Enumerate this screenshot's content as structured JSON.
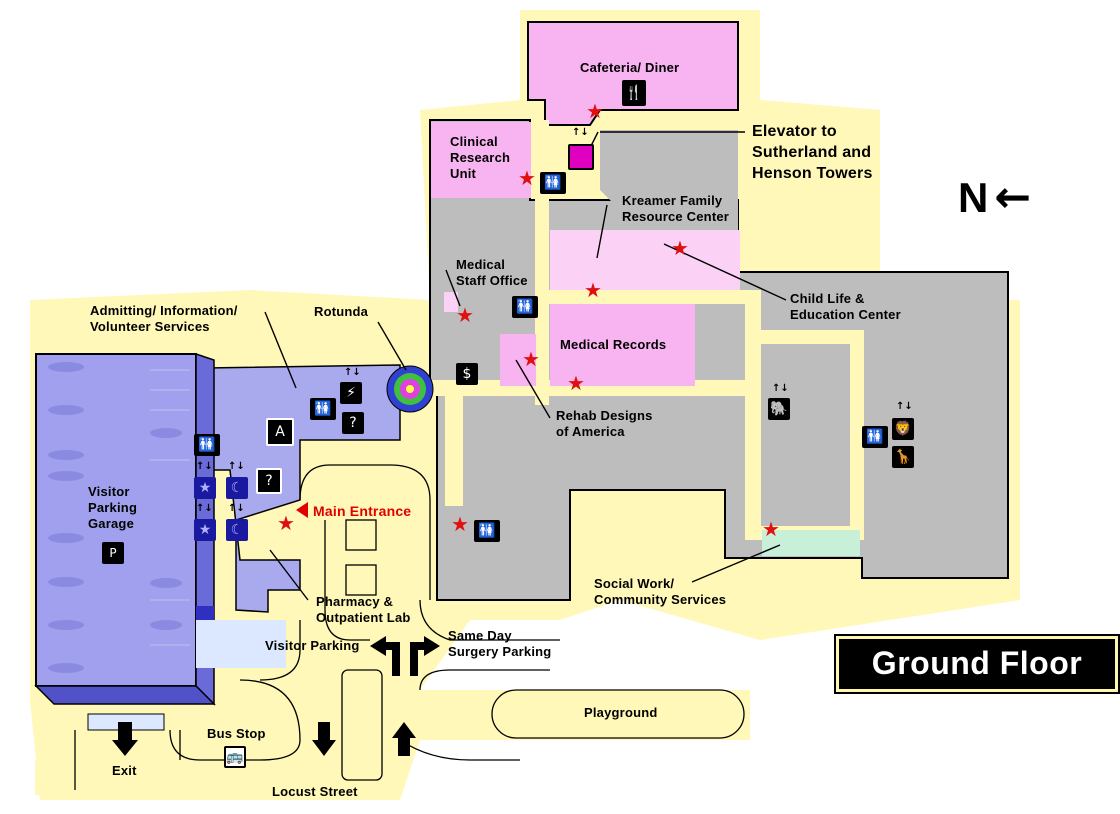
{
  "map": {
    "title": "Ground Floor",
    "compass": {
      "letter": "N",
      "arrow": "←"
    },
    "labels": {
      "cafeteria": "Cafeteria/ Diner",
      "elevator_towers": [
        "Elevator to",
        "Sutherland and",
        "Henson Towers"
      ],
      "clinical_research": [
        "Clinical",
        "Research",
        "Unit"
      ],
      "kreamer": [
        "Kreamer Family",
        "Resource Center"
      ],
      "medical_staff": [
        "Medical",
        "Staff Office"
      ],
      "child_life": [
        "Child Life &",
        "Education Center"
      ],
      "admitting": [
        "Admitting/ Information/",
        "Volunteer Services"
      ],
      "rotunda": "Rotunda",
      "medical_records": "Medical Records",
      "rehab": [
        "Rehab Designs",
        "of America"
      ],
      "visitor_garage": [
        "Visitor",
        "Parking",
        "Garage"
      ],
      "main_entrance": "Main Entrance",
      "social_work": [
        "Social Work/",
        "Community Services"
      ],
      "pharmacy": [
        "Pharmacy &",
        "Outpatient Lab"
      ],
      "visitor_parking": "Visitor Parking",
      "same_day": [
        "Same Day",
        "Surgery Parking"
      ],
      "playground": "Playground",
      "bus_stop": "Bus Stop",
      "exit": "Exit",
      "locust_street": "Locust Street"
    },
    "icons": {
      "info": "A",
      "question": "?",
      "dollar": "$",
      "parking": "P",
      "elevator_arrows": "↑↓"
    },
    "colors": {
      "building_gray": "#bdbdbd",
      "pink": "#f8b4f0",
      "light_pink": "#fbd2f6",
      "lavender": "#a9a9ee",
      "garage_blue": "#a0a0ee",
      "corridor": "#fff8b8",
      "mint": "#c8f0d8",
      "star_red": "#e01010",
      "entrance_red": "#e00000"
    }
  }
}
